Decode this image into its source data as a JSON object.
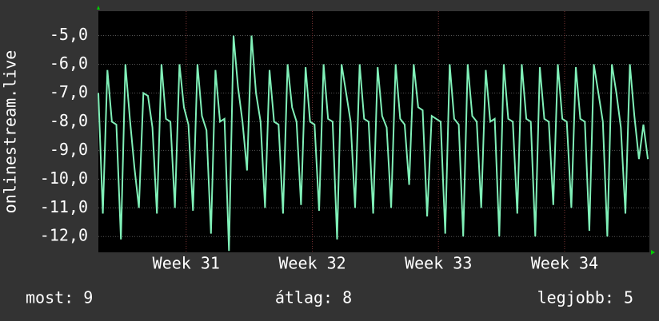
{
  "chart_data": {
    "type": "line",
    "ylabel": "onlinestream.live",
    "color": "#80f0b8",
    "ylim": [
      -12.55,
      -4.15
    ],
    "yticks": [
      {
        "value": -5,
        "label": "-5,0"
      },
      {
        "value": -6,
        "label": "-6,0"
      },
      {
        "value": -7,
        "label": "-7,0"
      },
      {
        "value": -8,
        "label": "-8,0"
      },
      {
        "value": -9,
        "label": "-9,0"
      },
      {
        "value": -10,
        "label": "-10,0"
      },
      {
        "value": -11,
        "label": "-11,0"
      },
      {
        "value": -12,
        "label": "-12,0"
      }
    ],
    "xlim": [
      0,
      734
    ],
    "xticks": [
      {
        "value": 117,
        "label": "Week 31"
      },
      {
        "value": 285,
        "label": "Week 32"
      },
      {
        "value": 453,
        "label": "Week 33"
      },
      {
        "value": 621,
        "label": "Week 34"
      }
    ],
    "grid": true,
    "x": [
      0,
      6,
      12,
      18,
      24,
      30,
      36,
      42,
      48,
      54,
      60,
      66,
      72,
      78,
      84,
      90,
      96,
      102,
      108,
      114,
      120,
      126,
      132,
      138,
      144,
      150,
      156,
      162,
      168,
      174,
      180,
      186,
      192,
      198,
      204,
      210,
      216,
      222,
      228,
      234,
      240,
      246,
      252,
      258,
      264,
      270,
      276,
      282,
      288,
      294,
      300,
      306,
      312,
      318,
      324,
      330,
      336,
      342,
      348,
      354,
      360,
      366,
      372,
      378,
      384,
      390,
      396,
      402,
      408,
      414,
      420,
      426,
      432,
      438,
      444,
      450,
      456,
      462,
      468,
      474,
      480,
      486,
      492,
      498,
      504,
      510,
      516,
      522,
      528,
      534,
      540,
      546,
      552,
      558,
      564,
      570,
      576,
      582,
      588,
      594,
      600,
      606,
      612,
      618,
      624,
      630,
      636,
      642,
      648,
      654,
      660,
      666,
      672,
      678,
      684,
      690,
      696,
      702,
      708,
      714,
      720,
      726,
      732
    ],
    "values": [
      -7.0,
      -11.2,
      -6.2,
      -8.0,
      -8.1,
      -12.1,
      -6.0,
      -7.9,
      -9.6,
      -11.0,
      -7.0,
      -7.1,
      -8.2,
      -11.2,
      -6.0,
      -7.9,
      -8.0,
      -11.0,
      -6.0,
      -7.5,
      -8.1,
      -11.1,
      -6.0,
      -7.8,
      -8.3,
      -11.9,
      -6.2,
      -8.0,
      -7.9,
      -12.5,
      -5.0,
      -6.8,
      -8.0,
      -9.7,
      -5.0,
      -7.0,
      -8.0,
      -11.0,
      -6.2,
      -8.0,
      -8.1,
      -11.2,
      -6.0,
      -7.5,
      -8.0,
      -10.9,
      -6.1,
      -8.0,
      -8.1,
      -11.1,
      -6.0,
      -7.9,
      -8.0,
      -12.1,
      -6.0,
      -7.0,
      -8.0,
      -11.0,
      -6.0,
      -7.9,
      -8.0,
      -11.2,
      -6.1,
      -7.8,
      -8.2,
      -11.0,
      -6.0,
      -7.9,
      -8.1,
      -10.2,
      -6.0,
      -7.5,
      -7.6,
      -11.3,
      -7.8,
      -7.9,
      -8.0,
      -11.9,
      -6.0,
      -7.9,
      -8.1,
      -12.0,
      -6.0,
      -7.8,
      -8.0,
      -11.0,
      -6.2,
      -8.0,
      -7.9,
      -12.0,
      -6.0,
      -7.9,
      -8.0,
      -11.2,
      -6.0,
      -7.9,
      -8.0,
      -12.0,
      -6.1,
      -7.9,
      -8.0,
      -10.9,
      -6.0,
      -7.9,
      -8.0,
      -11.0,
      -6.1,
      -7.9,
      -8.0,
      -11.8,
      -6.0,
      -7.0,
      -8.0,
      -12.0,
      -6.0,
      -7.0,
      -8.2,
      -11.2,
      -6.0,
      -7.8,
      -9.3,
      -8.1,
      -9.3
    ],
    "footer": [
      "most: 9",
      "átlag: 8",
      "legjobb: 5"
    ]
  }
}
